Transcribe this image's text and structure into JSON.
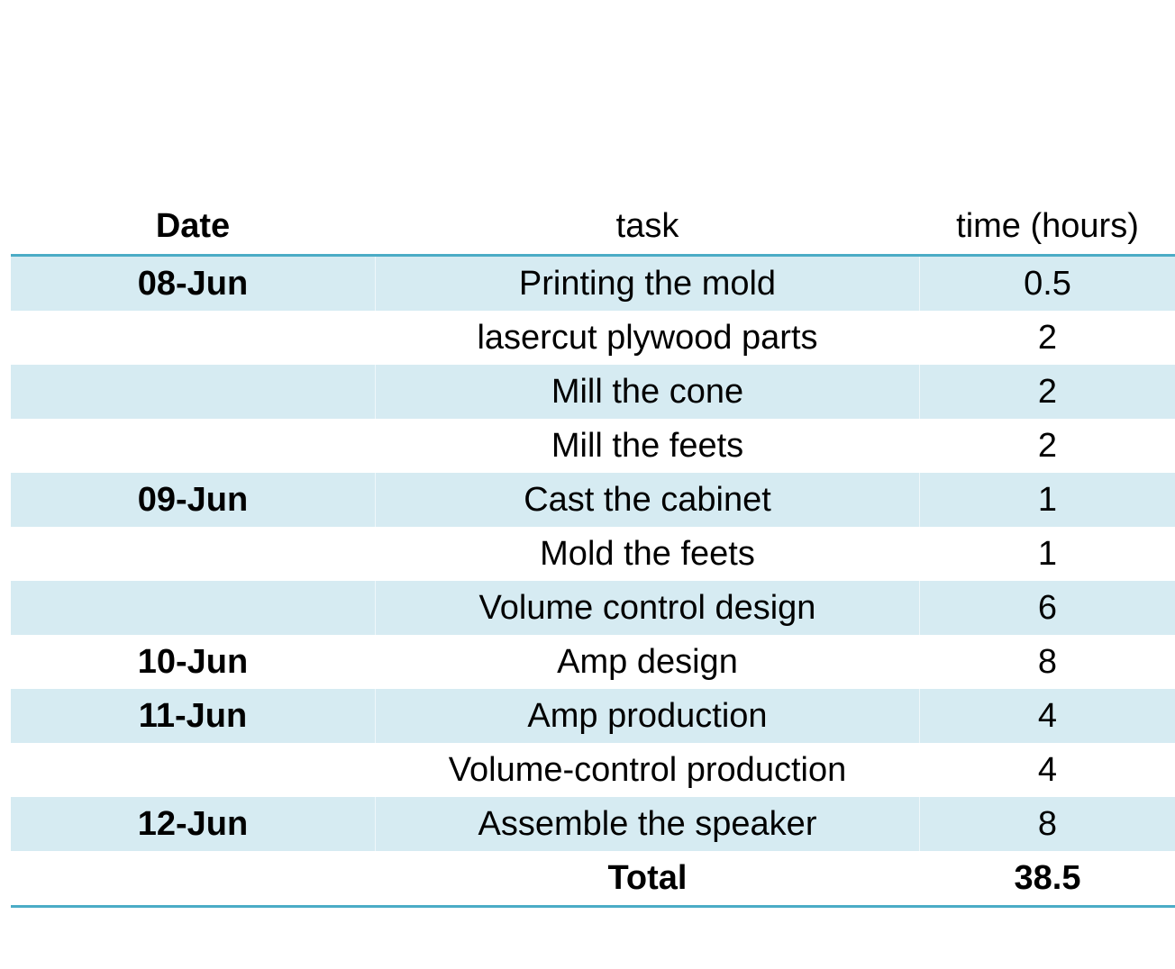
{
  "table": {
    "headers": {
      "date": "Date",
      "task": "task",
      "time": "time (hours)"
    },
    "rows": [
      {
        "date": "08-Jun",
        "task": "Printing the mold",
        "time": "0.5"
      },
      {
        "date": "",
        "task": "lasercut plywood parts",
        "time": "2"
      },
      {
        "date": "",
        "task": "Mill the cone",
        "time": "2"
      },
      {
        "date": "",
        "task": "Mill the feets",
        "time": "2"
      },
      {
        "date": "09-Jun",
        "task": "Cast the cabinet",
        "time": "1"
      },
      {
        "date": "",
        "task": "Mold the feets",
        "time": "1"
      },
      {
        "date": "",
        "task": "Volume control design",
        "time": "6"
      },
      {
        "date": "10-Jun",
        "task": "Amp design",
        "time": "8"
      },
      {
        "date": "11-Jun",
        "task": "Amp production",
        "time": "4"
      },
      {
        "date": "",
        "task": "Volume-control production",
        "time": "4"
      },
      {
        "date": "12-Jun",
        "task": "Assemble the speaker",
        "time": "8"
      }
    ],
    "total": {
      "label": "Total",
      "value": "38.5"
    },
    "colors": {
      "stripe": "#d6ebf2",
      "rule": "#4bacc6"
    }
  }
}
